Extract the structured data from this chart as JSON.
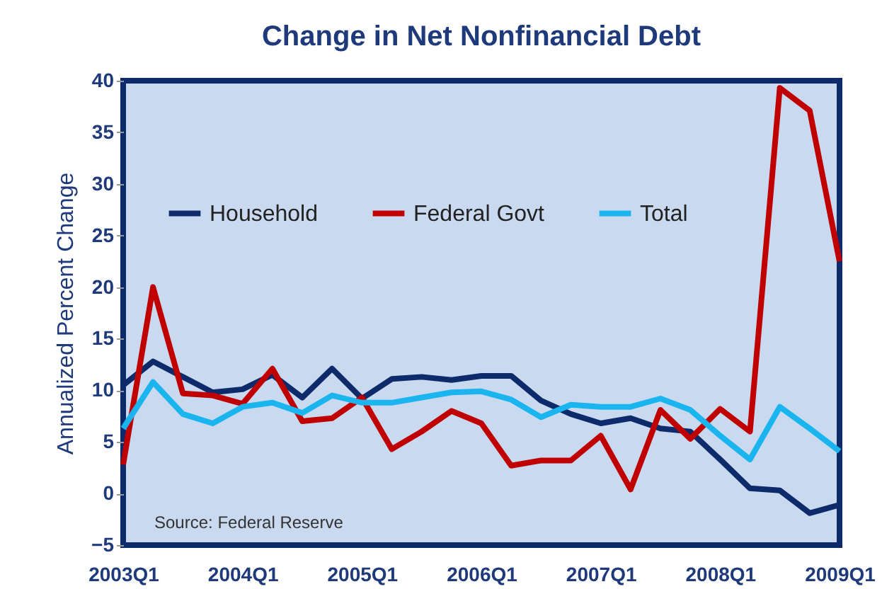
{
  "chart_data": {
    "type": "line",
    "title": "Change in Net Nonfinancial Debt",
    "ylabel": "Annualized Percent Change",
    "categories": [
      "2003Q1",
      null,
      null,
      null,
      "2004Q1",
      null,
      null,
      null,
      "2005Q1",
      null,
      null,
      null,
      "2006Q1",
      null,
      null,
      null,
      "2007Q1",
      null,
      null,
      null,
      "2008Q1",
      null,
      null,
      null,
      "2009Q1"
    ],
    "series": [
      {
        "name": "Household",
        "color": "#0d2a6b",
        "values": [
          10.5,
          12.8,
          11.3,
          9.8,
          10.1,
          11.5,
          9.3,
          12.1,
          9.2,
          11.1,
          11.3,
          11.0,
          11.4,
          11.4,
          9.0,
          7.7,
          6.8,
          7.3,
          6.3,
          6.0,
          3.3,
          0.5,
          0.3,
          -1.9,
          -1.1
        ]
      },
      {
        "name": "Federal Govt",
        "color": "#c00000",
        "values": [
          2.8,
          20.0,
          9.7,
          9.5,
          8.7,
          12.1,
          7.0,
          7.3,
          9.3,
          4.3,
          6.0,
          8.0,
          6.8,
          2.7,
          3.2,
          3.2,
          5.6,
          0.4,
          8.1,
          5.3,
          8.2,
          6.0,
          39.3,
          37.1,
          22.5
        ]
      },
      {
        "name": "Total",
        "color": "#1ab4ee",
        "values": [
          6.3,
          10.8,
          7.7,
          6.8,
          8.4,
          8.8,
          7.8,
          9.5,
          8.8,
          8.8,
          9.3,
          9.8,
          9.9,
          9.1,
          7.4,
          8.6,
          8.4,
          8.4,
          9.2,
          8.1,
          5.6,
          3.3,
          8.4,
          6.3,
          4.1
        ]
      }
    ],
    "ylim": [
      -5,
      40
    ],
    "yticks": [
      -5,
      0,
      5,
      10,
      15,
      20,
      25,
      30,
      35,
      40
    ],
    "grid": false,
    "legend": "top",
    "marker": "none",
    "line_style": "solid",
    "annotations": [
      "Source: Federal Reserve"
    ]
  }
}
